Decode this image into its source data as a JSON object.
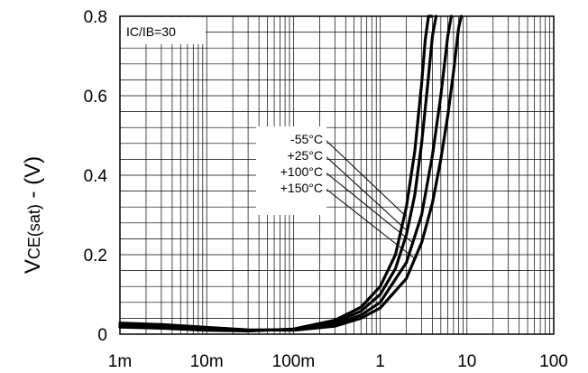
{
  "chart_data": {
    "type": "line",
    "x_scale": "log",
    "xlim": [
      0.001,
      100
    ],
    "ylim": [
      0,
      0.8
    ],
    "x_tick_labels": [
      "1m",
      "10m",
      "100m",
      "1",
      "10",
      "100"
    ],
    "y_tick_labels": [
      "0",
      "0.2",
      "0.4",
      "0.6",
      "0.8"
    ],
    "ylabel_main": "V",
    "ylabel_sub": "CE(sat)",
    "ylabel_suffix": " - (V)",
    "xlabel": "",
    "grid": true,
    "annotation": "IC/IB=30",
    "legend_placement": "center-right",
    "series": [
      {
        "name": "-55°C",
        "x": [
          0.001,
          0.003,
          0.01,
          0.03,
          0.1,
          0.3,
          0.6,
          1,
          1.5,
          2,
          2.5,
          3,
          3.3,
          3.6,
          3.9
        ],
        "y": [
          0.018,
          0.015,
          0.01,
          0.008,
          0.013,
          0.035,
          0.068,
          0.12,
          0.2,
          0.32,
          0.46,
          0.63,
          0.74,
          0.8,
          0.8
        ]
      },
      {
        "name": "+25°C",
        "x": [
          0.001,
          0.003,
          0.01,
          0.03,
          0.1,
          0.3,
          0.6,
          1,
          1.5,
          2,
          2.5,
          3,
          3.5,
          4,
          4.4
        ],
        "y": [
          0.02,
          0.016,
          0.011,
          0.009,
          0.012,
          0.03,
          0.058,
          0.1,
          0.165,
          0.25,
          0.35,
          0.48,
          0.62,
          0.75,
          0.8
        ]
      },
      {
        "name": "+100°C",
        "x": [
          0.001,
          0.003,
          0.01,
          0.03,
          0.1,
          0.3,
          0.6,
          1,
          2,
          3,
          4,
          5,
          6,
          6.6
        ],
        "y": [
          0.024,
          0.02,
          0.014,
          0.01,
          0.011,
          0.025,
          0.048,
          0.08,
          0.18,
          0.3,
          0.45,
          0.6,
          0.75,
          0.8
        ]
      },
      {
        "name": "+150°C",
        "x": [
          0.001,
          0.003,
          0.01,
          0.03,
          0.1,
          0.3,
          0.6,
          1,
          2,
          3,
          4,
          5,
          6,
          7,
          8,
          8.6
        ],
        "y": [
          0.028,
          0.024,
          0.017,
          0.011,
          0.01,
          0.02,
          0.04,
          0.066,
          0.14,
          0.23,
          0.33,
          0.44,
          0.55,
          0.66,
          0.77,
          0.8
        ]
      }
    ]
  },
  "colors": {
    "line": "#000000",
    "grid": "#000000",
    "background": "#ffffff"
  }
}
